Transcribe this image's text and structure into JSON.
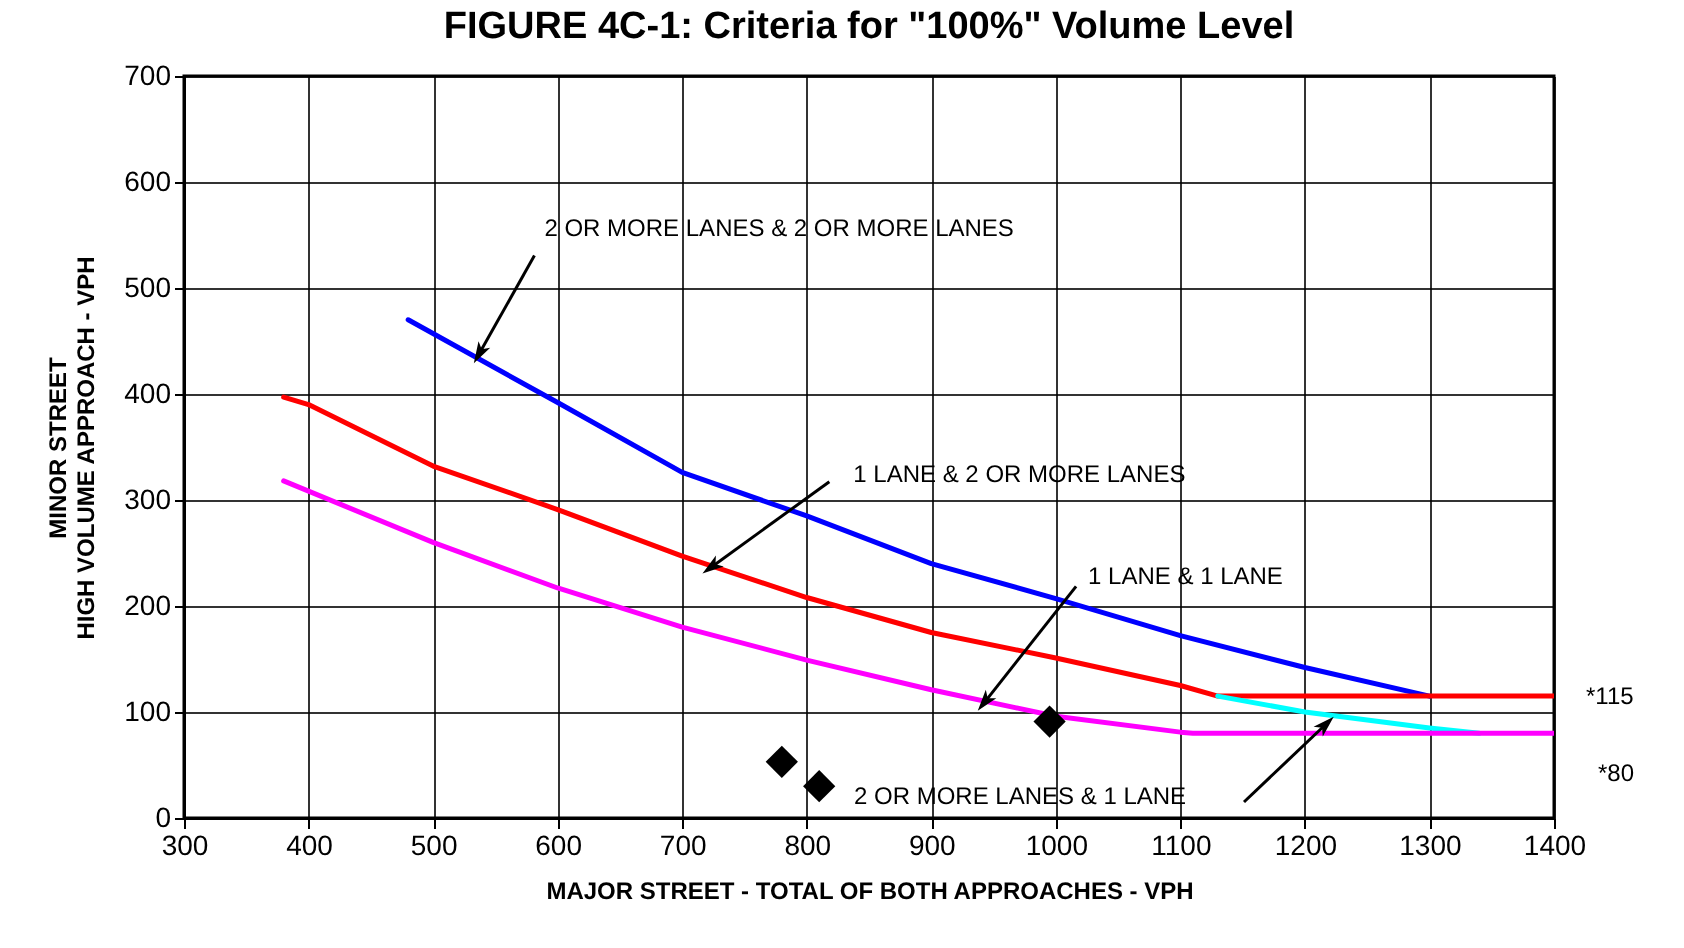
{
  "chart_data": {
    "type": "line",
    "title": "FIGURE 4C-1:  Criteria for \"100%\" Volume Level",
    "xlabel": "MAJOR STREET - TOTAL OF BOTH APPROACHES - VPH",
    "ylabel": "MINOR STREET\nHIGH VOLUME APPROACH - VPH",
    "xlim": [
      300,
      1400
    ],
    "ylim": [
      0,
      700
    ],
    "xticks": [
      300,
      400,
      500,
      600,
      700,
      800,
      900,
      1000,
      1100,
      1200,
      1300,
      1400
    ],
    "yticks": [
      0,
      100,
      200,
      300,
      400,
      500,
      600,
      700
    ],
    "grid": true,
    "series": [
      {
        "type": "line",
        "color": "#0000ff",
        "x": [
          480,
          600,
          700,
          800,
          900,
          1000,
          1100,
          1200,
          1300
        ],
        "values": [
          470,
          392,
          326,
          285,
          240,
          207,
          172,
          142,
          115
        ]
      },
      {
        "type": "line",
        "color": "#ff0000",
        "x": [
          380,
          400,
          500,
          600,
          700,
          800,
          900,
          1000,
          1100,
          1130,
          1400
        ],
        "values": [
          397,
          390,
          332,
          291,
          247,
          208,
          175,
          151,
          125,
          115,
          115
        ]
      },
      {
        "type": "line",
        "color": "#00ffff",
        "x": [
          1130,
          1200,
          1300,
          1340
        ],
        "values": [
          115,
          100,
          85,
          80
        ]
      },
      {
        "type": "line",
        "color": "#ff00ff",
        "x": [
          380,
          500,
          600,
          700,
          800,
          900,
          1000,
          1100,
          1110,
          1400
        ],
        "values": [
          318,
          260,
          217,
          180,
          149,
          121,
          96,
          81,
          80,
          80
        ]
      },
      {
        "type": "scatter",
        "marker": "diamond",
        "color": "#000000",
        "x": [
          780,
          810,
          995
        ],
        "values": [
          53,
          30,
          91
        ]
      }
    ],
    "annotations": [
      {
        "text": "2 OR MORE LANES & 2 OR MORE LANES",
        "x": 538,
        "y": 440
      },
      {
        "text": "1 LANE & 2 OR MORE LANES",
        "x": 725,
        "y": 238
      },
      {
        "text": "1 LANE & 1 LANE",
        "x": 944,
        "y": 111
      },
      "2 OR MORE LANES & 1 LANE",
      {
        "text": "*115",
        "x": 1400,
        "y": 115
      },
      {
        "text": "*80",
        "x": 1400,
        "y": 80
      }
    ]
  }
}
